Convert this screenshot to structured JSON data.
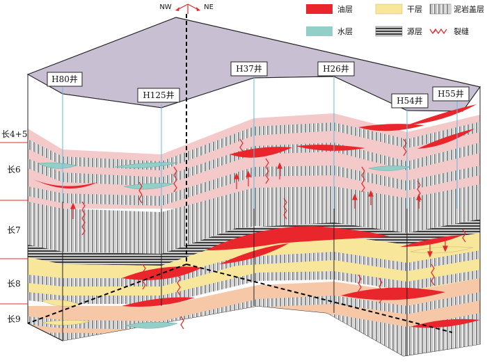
{
  "compass": {
    "left": "NW",
    "right": "NE"
  },
  "legend": [
    {
      "key": "oil",
      "label": "油层",
      "color": "#e8262b"
    },
    {
      "key": "dry",
      "label": "干层",
      "color": "#f8e79a"
    },
    {
      "key": "cap",
      "label": "泥岩盖层",
      "color": "#9c9c9c"
    },
    {
      "key": "water",
      "label": "水层",
      "color": "#93cfc9"
    },
    {
      "key": "source",
      "label": "源层",
      "color": "#555555"
    },
    {
      "key": "fracture",
      "label": "裂缝",
      "color": "#e8262b"
    }
  ],
  "wells": [
    {
      "id": "h80",
      "label": "H80井"
    },
    {
      "id": "h125",
      "label": "H125井"
    },
    {
      "id": "h37",
      "label": "H37井"
    },
    {
      "id": "h26",
      "label": "H26井"
    },
    {
      "id": "h54",
      "label": "H54井"
    },
    {
      "id": "h55",
      "label": "H55井"
    }
  ],
  "strata": [
    {
      "id": "c45",
      "label": "长4+5"
    },
    {
      "id": "c6",
      "label": "长6"
    },
    {
      "id": "c7",
      "label": "长7"
    },
    {
      "id": "c8",
      "label": "长8"
    },
    {
      "id": "c9",
      "label": "长9"
    }
  ],
  "colors": {
    "top_surface": "#c9bfd2",
    "pink_layer": "#f3c9c9",
    "yellow_layer": "#f8e79a",
    "peach_layer": "#f6c8a8",
    "stripe_light": "#e4e4e4",
    "stripe_dark": "#8a8a8a",
    "source": "#444444",
    "oil": "#e8262b",
    "water": "#93cfc9",
    "well_line": "#6ab6e0",
    "tick": "#e8262b"
  }
}
